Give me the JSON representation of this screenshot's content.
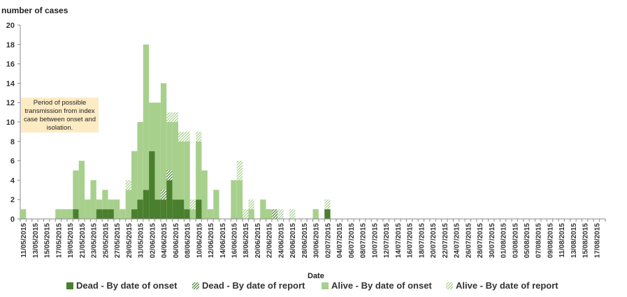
{
  "chart_data": {
    "type": "bar",
    "stacked": true,
    "ylabel": "number of cases",
    "xlabel": "Date",
    "ylim": [
      0,
      20
    ],
    "yticks": [
      0,
      2,
      4,
      6,
      8,
      10,
      12,
      14,
      16,
      18,
      20
    ],
    "annotation": "Period of possible transmission from index case between onset and isolation.",
    "categories": [
      "11/05/2015",
      "12/05/2015",
      "13/05/2015",
      "14/05/2015",
      "15/05/2015",
      "16/05/2015",
      "17/05/2015",
      "18/05/2015",
      "19/05/2015",
      "20/05/2015",
      "21/05/2015",
      "22/05/2015",
      "23/05/2015",
      "24/05/2015",
      "25/05/2015",
      "26/05/2015",
      "27/05/2015",
      "28/05/2015",
      "29/05/2015",
      "30/05/2015",
      "31/05/2015",
      "01/06/2015",
      "02/06/2015",
      "03/06/2015",
      "04/06/2015",
      "05/06/2015",
      "06/06/2015",
      "07/06/2015",
      "08/06/2015",
      "09/06/2015",
      "10/06/2015",
      "11/06/2015",
      "12/06/2015",
      "13/06/2015",
      "14/06/2015",
      "15/06/2015",
      "16/06/2015",
      "17/06/2015",
      "18/06/2015",
      "19/06/2015",
      "20/06/2015",
      "21/06/2015",
      "22/06/2015",
      "23/06/2015",
      "24/06/2015",
      "25/06/2015",
      "26/06/2015",
      "27/06/2015",
      "28/06/2015",
      "29/06/2015",
      "30/06/2015",
      "01/07/2015",
      "02/07/2015",
      "03/07/2015",
      "04/07/2015",
      "05/07/2015",
      "06/07/2015",
      "07/07/2015",
      "08/07/2015",
      "09/07/2015",
      "10/07/2015",
      "11/07/2015",
      "12/07/2015",
      "13/07/2015",
      "14/07/2015",
      "15/07/2015",
      "16/07/2015",
      "17/07/2015",
      "18/07/2015",
      "19/07/2015",
      "20/07/2015",
      "21/07/2015",
      "22/07/2015",
      "23/07/2015",
      "24/07/2015",
      "25/07/2015",
      "26/07/2015",
      "27/07/2015",
      "28/07/2015",
      "29/07/2015",
      "30/07/2015",
      "31/07/2015",
      "01/08/2015",
      "02/08/2015",
      "03/08/2015",
      "04/08/2015",
      "05/08/2015",
      "06/08/2015",
      "07/08/2015",
      "08/08/2015",
      "09/08/2015",
      "10/08/2015",
      "11/08/2015",
      "12/08/2015",
      "13/08/2015",
      "14/08/2015",
      "15/08/2015",
      "16/08/2015",
      "17/08/2015",
      "18/08/2015"
    ],
    "tick_labels": [
      "11/05/2015",
      "13/05/2015",
      "15/05/2015",
      "17/05/2015",
      "19/05/2015",
      "21/05/2015",
      "23/05/2015",
      "25/05/2015",
      "27/05/2015",
      "29/05/2015",
      "31/05/2015",
      "02/06/2015",
      "04/06/2015",
      "06/06/2015",
      "08/06/2015",
      "10/06/2015",
      "12/06/2015",
      "14/06/2015",
      "16/06/2015",
      "18/06/2015",
      "20/06/2015",
      "22/06/2015",
      "24/06/2015",
      "26/06/2015",
      "28/06/2015",
      "30/06/2015",
      "02/07/2015",
      "04/07/2015",
      "06/07/2015",
      "08/07/2015",
      "10/07/2015",
      "12/07/2015",
      "14/07/2015",
      "16/07/2015",
      "18/07/2015",
      "20/07/2015",
      "22/07/2015",
      "24/07/2015",
      "26/07/2015",
      "28/07/2015",
      "30/07/2015",
      "01/08/2015",
      "03/08/2015",
      "05/08/2015",
      "07/08/2015",
      "09/08/2015",
      "11/08/2015",
      "13/08/2015",
      "15/08/2015",
      "17/08/2015"
    ],
    "series": [
      {
        "name": "Dead - By date of onset",
        "color": "#4a7f2e",
        "pattern": "solid",
        "values": [
          0,
          0,
          0,
          0,
          0,
          0,
          0,
          0,
          0,
          1,
          0,
          0,
          0,
          1,
          1,
          1,
          0,
          0,
          0,
          1,
          2,
          3,
          7,
          2,
          2,
          4,
          2,
          2,
          1,
          0,
          2,
          0,
          0,
          0,
          0,
          0,
          0,
          0,
          0,
          0,
          0,
          0,
          0,
          0,
          0,
          0,
          0,
          0,
          0,
          0,
          0,
          0,
          1,
          0,
          0,
          0,
          0,
          0,
          0,
          0,
          0,
          0,
          0,
          0,
          0,
          0,
          0,
          0,
          0,
          0,
          0,
          0,
          0,
          0,
          0,
          0,
          0,
          0,
          0,
          0,
          0,
          0,
          0,
          0,
          0,
          0,
          0,
          0,
          0,
          0,
          0,
          0,
          0,
          0,
          0,
          0,
          0,
          0,
          0,
          0
        ]
      },
      {
        "name": "Dead - By date of report",
        "color": "#4a7f2e",
        "pattern": "hatch",
        "values": [
          0,
          0,
          0,
          0,
          0,
          0,
          0,
          0,
          0,
          0,
          0,
          0,
          0,
          0,
          0,
          0,
          0,
          0,
          0,
          0,
          0,
          0,
          0,
          0,
          1,
          1,
          0,
          0,
          0,
          0,
          0,
          0,
          0,
          0,
          0,
          0,
          0,
          0,
          0,
          0,
          0,
          0,
          0,
          1,
          0,
          0,
          0,
          0,
          0,
          0,
          0,
          0,
          0,
          0,
          0,
          0,
          0,
          0,
          0,
          0,
          0,
          0,
          0,
          0,
          0,
          0,
          0,
          0,
          0,
          0,
          0,
          0,
          0,
          0,
          0,
          0,
          0,
          0,
          0,
          0,
          0,
          0,
          0,
          0,
          0,
          0,
          0,
          0,
          0,
          0,
          0,
          0,
          0,
          0,
          0,
          0,
          0,
          0,
          0,
          0
        ]
      },
      {
        "name": "Alive - By date of onset",
        "color": "#a8d08d",
        "pattern": "solid",
        "values": [
          1,
          0,
          0,
          0,
          0,
          0,
          1,
          1,
          1,
          4,
          6,
          2,
          4,
          1,
          2,
          1,
          2,
          1,
          3,
          6,
          8,
          15,
          5,
          10,
          11,
          5,
          8,
          6,
          7,
          1,
          6,
          5,
          1,
          3,
          0,
          0,
          4,
          4,
          0,
          1,
          0,
          2,
          1,
          0,
          0,
          0,
          0,
          0,
          0,
          0,
          1,
          0,
          0,
          0,
          0,
          0,
          0,
          0,
          0,
          0,
          0,
          0,
          0,
          0,
          0,
          0,
          0,
          0,
          0,
          0,
          0,
          0,
          0,
          0,
          0,
          0,
          0,
          0,
          0,
          0,
          0,
          0,
          0,
          0,
          0,
          0,
          0,
          0,
          0,
          0,
          0,
          0,
          0,
          0,
          0,
          0,
          0,
          0,
          0,
          0
        ]
      },
      {
        "name": "Alive - By date of report",
        "color": "#a8d08d",
        "pattern": "hatch",
        "values": [
          0,
          0,
          0,
          0,
          0,
          0,
          0,
          0,
          0,
          0,
          0,
          0,
          0,
          0,
          0,
          0,
          0,
          0,
          1,
          0,
          0,
          0,
          0,
          0,
          0,
          1,
          1,
          1,
          1,
          1,
          1,
          0,
          0,
          0,
          0,
          0,
          0,
          2,
          1,
          1,
          0,
          0,
          0,
          0,
          1,
          0,
          1,
          0,
          0,
          0,
          0,
          0,
          1,
          0,
          0,
          0,
          0,
          0,
          0,
          0,
          0,
          0,
          0,
          0,
          0,
          0,
          0,
          0,
          0,
          0,
          0,
          0,
          0,
          0,
          0,
          0,
          0,
          0,
          0,
          0,
          0,
          0,
          0,
          0,
          0,
          0,
          0,
          0,
          0,
          0,
          0,
          0,
          0,
          0,
          0,
          0,
          0,
          0,
          0,
          0
        ]
      }
    ],
    "legend_position": "bottom",
    "grid": false
  }
}
